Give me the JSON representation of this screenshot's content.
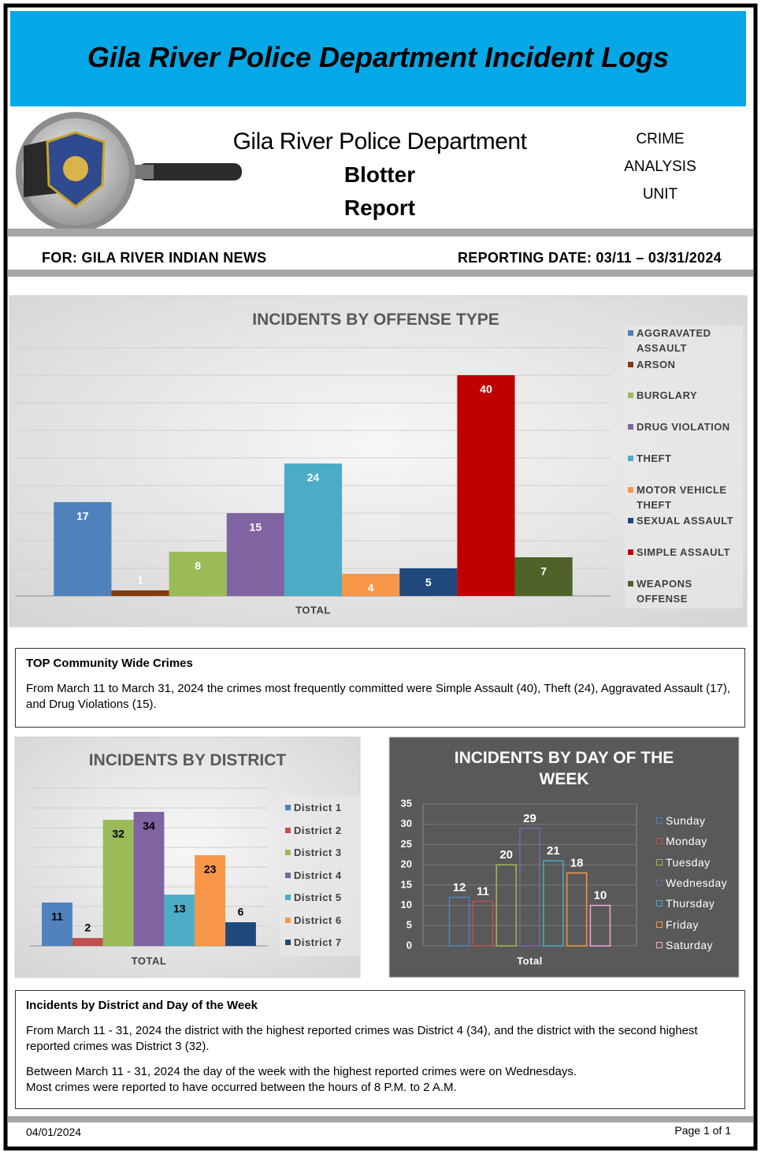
{
  "header": {
    "title": "Gila River Police Department Incident Logs"
  },
  "masthead": {
    "department": "Gila River Police Department",
    "report_lines": [
      "Blotter",
      "Report"
    ],
    "unit_lines": [
      "CRIME",
      "ANALYSIS",
      "UNIT"
    ]
  },
  "info_bar": {
    "for": "FOR: GILA RIVER INDIAN NEWS",
    "reporting_date": "REPORTING DATE: 03/11 – 03/31/2024"
  },
  "chart_data": [
    {
      "type": "bar",
      "title": "INCIDENTS BY OFFENSE TYPE",
      "categories": [
        "TOTAL"
      ],
      "series": [
        {
          "name": "AGGRAVATED ASSAULT",
          "color": "#4f81bd",
          "values": [
            17
          ]
        },
        {
          "name": "ARSON",
          "color": "#843c0c",
          "values": [
            1
          ]
        },
        {
          "name": "BURGLARY",
          "color": "#9bbb59",
          "values": [
            8
          ]
        },
        {
          "name": "DRUG VIOLATION",
          "color": "#8064a2",
          "values": [
            15
          ]
        },
        {
          "name": "THEFT",
          "color": "#4bacc6",
          "values": [
            24
          ]
        },
        {
          "name": "MOTOR VEHICLE THEFT",
          "color": "#f79646",
          "values": [
            4
          ]
        },
        {
          "name": "SEXUAL ASSAULT",
          "color": "#1f497d",
          "values": [
            5
          ]
        },
        {
          "name": "SIMPLE ASSAULT",
          "color": "#c00000",
          "values": [
            40
          ]
        },
        {
          "name": "WEAPONS OFFENSE",
          "color": "#4f6228",
          "values": [
            7
          ]
        }
      ],
      "ylim": [
        0,
        45
      ],
      "yticks": [
        0,
        5,
        10,
        15,
        20,
        25,
        30,
        35,
        40,
        45
      ],
      "ytick_labels": false,
      "grid": true,
      "legend": "right",
      "bar_fill": true,
      "text_color": "#595959",
      "value_label_color": "#ffffff"
    },
    {
      "type": "bar",
      "title": "INCIDENTS BY DISTRICT",
      "categories": [
        "TOTAL"
      ],
      "series": [
        {
          "name": "District 1",
          "color": "#4f81bd",
          "values": [
            11
          ]
        },
        {
          "name": "District 2",
          "color": "#c0504d",
          "values": [
            2
          ]
        },
        {
          "name": "District 3",
          "color": "#9bbb59",
          "values": [
            32
          ]
        },
        {
          "name": "District 4",
          "color": "#8064a2",
          "values": [
            34
          ]
        },
        {
          "name": "District 5",
          "color": "#4bacc6",
          "values": [
            13
          ]
        },
        {
          "name": "District 6",
          "color": "#f79646",
          "values": [
            23
          ]
        },
        {
          "name": "District 7",
          "color": "#1f497d",
          "values": [
            6
          ]
        }
      ],
      "ylim": [
        0,
        40
      ],
      "yticks": [
        0,
        5,
        10,
        15,
        20,
        25,
        30,
        35,
        40
      ],
      "ytick_labels": false,
      "grid": true,
      "legend": "right",
      "bar_fill": true,
      "text_color": "#595959",
      "value_label_color": "#000000"
    },
    {
      "type": "bar",
      "title": "INCIDENTS BY DAY OF THE WEEK",
      "categories": [
        "Total"
      ],
      "series": [
        {
          "name": "Sunday",
          "color": "#4f81bd",
          "values": [
            12
          ]
        },
        {
          "name": "Monday",
          "color": "#c0504d",
          "values": [
            11
          ]
        },
        {
          "name": "Tuesday",
          "color": "#9bbb59",
          "values": [
            20
          ]
        },
        {
          "name": "Wednesday",
          "color": "#8064a2",
          "values": [
            29
          ]
        },
        {
          "name": "Thursday",
          "color": "#4bacc6",
          "values": [
            21
          ]
        },
        {
          "name": "Friday",
          "color": "#f79646",
          "values": [
            18
          ]
        },
        {
          "name": "Saturday",
          "color": "#f4a6d7",
          "values": [
            10
          ]
        }
      ],
      "ylim": [
        0,
        35
      ],
      "yticks": [
        0,
        5,
        10,
        15,
        20,
        25,
        30,
        35
      ],
      "ytick_labels": true,
      "grid": true,
      "legend": "right",
      "bar_fill": false,
      "background_color": "#595959",
      "text_color": "#ffffff",
      "value_label_color": "#ffffff"
    }
  ],
  "summaries": [
    {
      "title": "TOP Community Wide Crimes",
      "paragraphs": [
        "From March 11 to March 31, 2024 the crimes most frequently committed were Simple Assault (40), Theft (24), Aggravated Assault (17), and Drug Violations (15)."
      ]
    },
    {
      "title": "Incidents by District and Day of the Week",
      "paragraphs": [
        "From March 11 - 31, 2024 the district with the highest reported crimes was District 4 (34), and the district with the second highest reported crimes was District 3 (32).",
        "Between March 11 - 31, 2024 the day of the week with the highest reported crimes were on Wednesdays.",
        "Most crimes were reported to have occurred between the hours of 8 P.M. to 2 A.M."
      ]
    }
  ],
  "footer": {
    "date": "04/01/2024",
    "page": "Page 1 of 1"
  }
}
